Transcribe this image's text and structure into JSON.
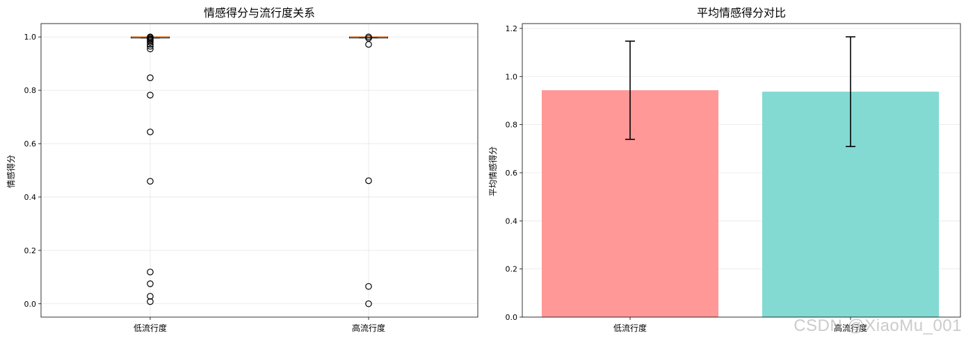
{
  "watermark": "CSDN @XiaoMu_001",
  "chart_data": [
    {
      "type": "box",
      "title": "情感得分与流行度关系",
      "xlabel": "",
      "ylabel": "情感得分",
      "categories": [
        "低流行度",
        "高流行度"
      ],
      "ylim": [
        -0.05,
        1.05
      ],
      "yticks": [
        "0.0",
        "0.2",
        "0.4",
        "0.6",
        "0.8",
        "1.0"
      ],
      "grid": true,
      "boxes": [
        {
          "q1": 0.999,
          "median": 1.0,
          "q3": 1.0,
          "whisker_low": 0.996,
          "whisker_high": 1.0,
          "outliers": [
            1.0,
            0.997,
            0.993,
            0.99,
            0.985,
            0.98,
            0.972,
            0.965,
            0.955,
            0.847,
            0.782,
            0.644,
            0.459,
            0.119,
            0.075,
            0.028,
            0.008
          ]
        },
        {
          "q1": 0.999,
          "median": 1.0,
          "q3": 1.0,
          "whisker_low": 0.997,
          "whisker_high": 1.0,
          "outliers": [
            1.0,
            0.995,
            0.972,
            0.461,
            0.065,
            0.0
          ]
        }
      ],
      "colors": {
        "median": "#d4742a",
        "box": "#000000"
      }
    },
    {
      "type": "bar",
      "title": "平均情感得分对比",
      "xlabel": "",
      "ylabel": "平均情感得分",
      "categories": [
        "低流行度",
        "高流行度"
      ],
      "values": [
        0.943,
        0.937
      ],
      "errors": [
        0.204,
        0.228
      ],
      "ylim": [
        0,
        1.22
      ],
      "yticks": [
        "0.0",
        "0.2",
        "0.4",
        "0.6",
        "0.8",
        "1.0",
        "1.2"
      ],
      "grid": true,
      "colors": [
        "#ff9896",
        "#82dad3"
      ]
    }
  ]
}
